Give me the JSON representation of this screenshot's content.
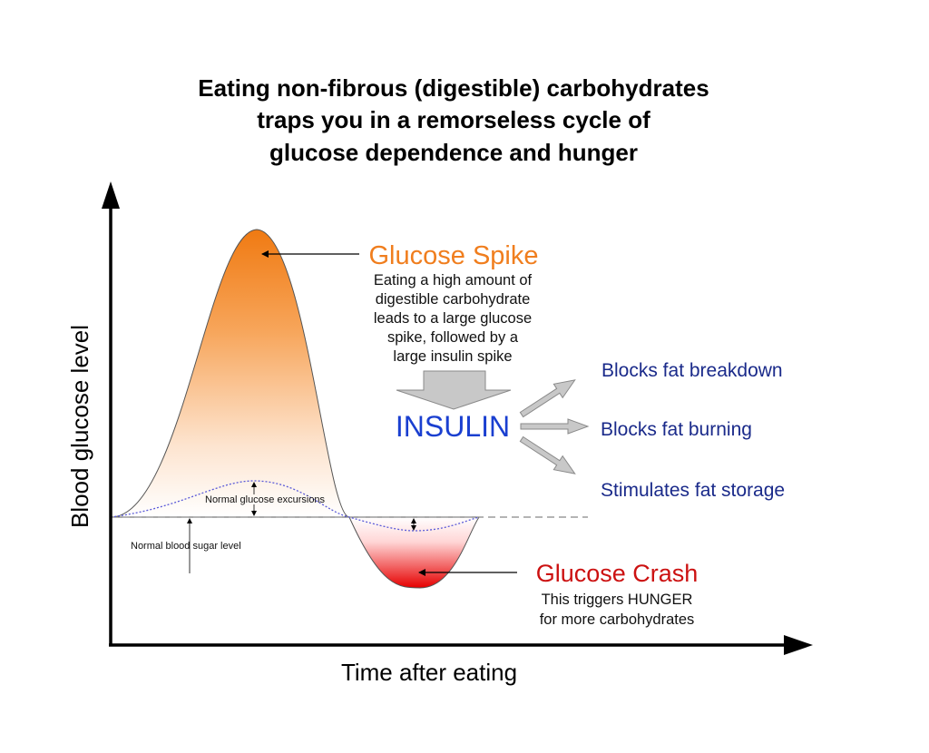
{
  "title_lines": [
    "Eating non-fibrous (digestible) carbohydrates",
    "traps you in a remorseless cycle of",
    "glucose dependence and hunger"
  ],
  "axes": {
    "x_label": "Time after eating",
    "y_label": "Blood glucose level"
  },
  "spike": {
    "title": "Glucose Spike",
    "description_lines": [
      "Eating a high amount of",
      "digestible carbohydrate",
      "leads to a large glucose",
      "spike, followed by a",
      "large insulin spike"
    ],
    "color": "#f07e1e"
  },
  "insulin": {
    "label": "INSULIN",
    "color": "#1a3fd0",
    "effects": [
      "Blocks fat breakdown",
      "Blocks fat burning",
      "Stimulates fat storage"
    ],
    "effect_color": "#1a2a8a"
  },
  "crash": {
    "title": "Glucose Crash",
    "description_lines": [
      "This triggers HUNGER",
      "for more carbohydrates"
    ],
    "color": "#cc1111"
  },
  "normal": {
    "excursions_label": "Normal glucose excursions",
    "baseline_label": "Normal blood sugar level"
  }
}
